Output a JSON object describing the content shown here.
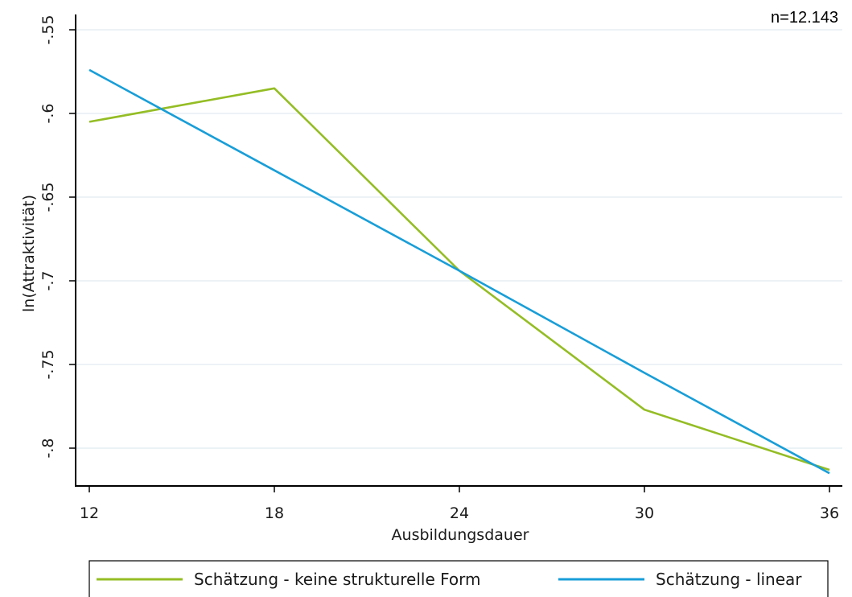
{
  "chart_data": {
    "type": "line",
    "annotation": "n=12.143",
    "xlabel": "Ausbildungsdauer",
    "ylabel": "ln(Attraktivität)",
    "x": [
      12,
      18,
      24,
      30,
      36
    ],
    "xlim": [
      12,
      36
    ],
    "x_ticks": [
      12,
      18,
      24,
      30,
      36
    ],
    "x_tick_labels": [
      "12",
      "18",
      "24",
      "30",
      "36"
    ],
    "ylim": [
      -0.82,
      -0.55
    ],
    "y_ticks": [
      -0.55,
      -0.6,
      -0.65,
      -0.7,
      -0.75,
      -0.8
    ],
    "y_tick_labels": [
      "-.55",
      "-.6",
      "-.65",
      "-.7",
      "-.75",
      "-.8"
    ],
    "grid": true,
    "legend_position": "bottom",
    "series": [
      {
        "name": "Schätzung - keine strukturelle Form",
        "color": "#94bd24",
        "values": [
          -0.605,
          -0.585,
          -0.694,
          -0.777,
          -0.813
        ]
      },
      {
        "name": "Schätzung - linear",
        "color": "#189ed8",
        "values": [
          -0.574,
          -0.634,
          -0.694,
          -0.755,
          -0.815
        ]
      }
    ]
  }
}
